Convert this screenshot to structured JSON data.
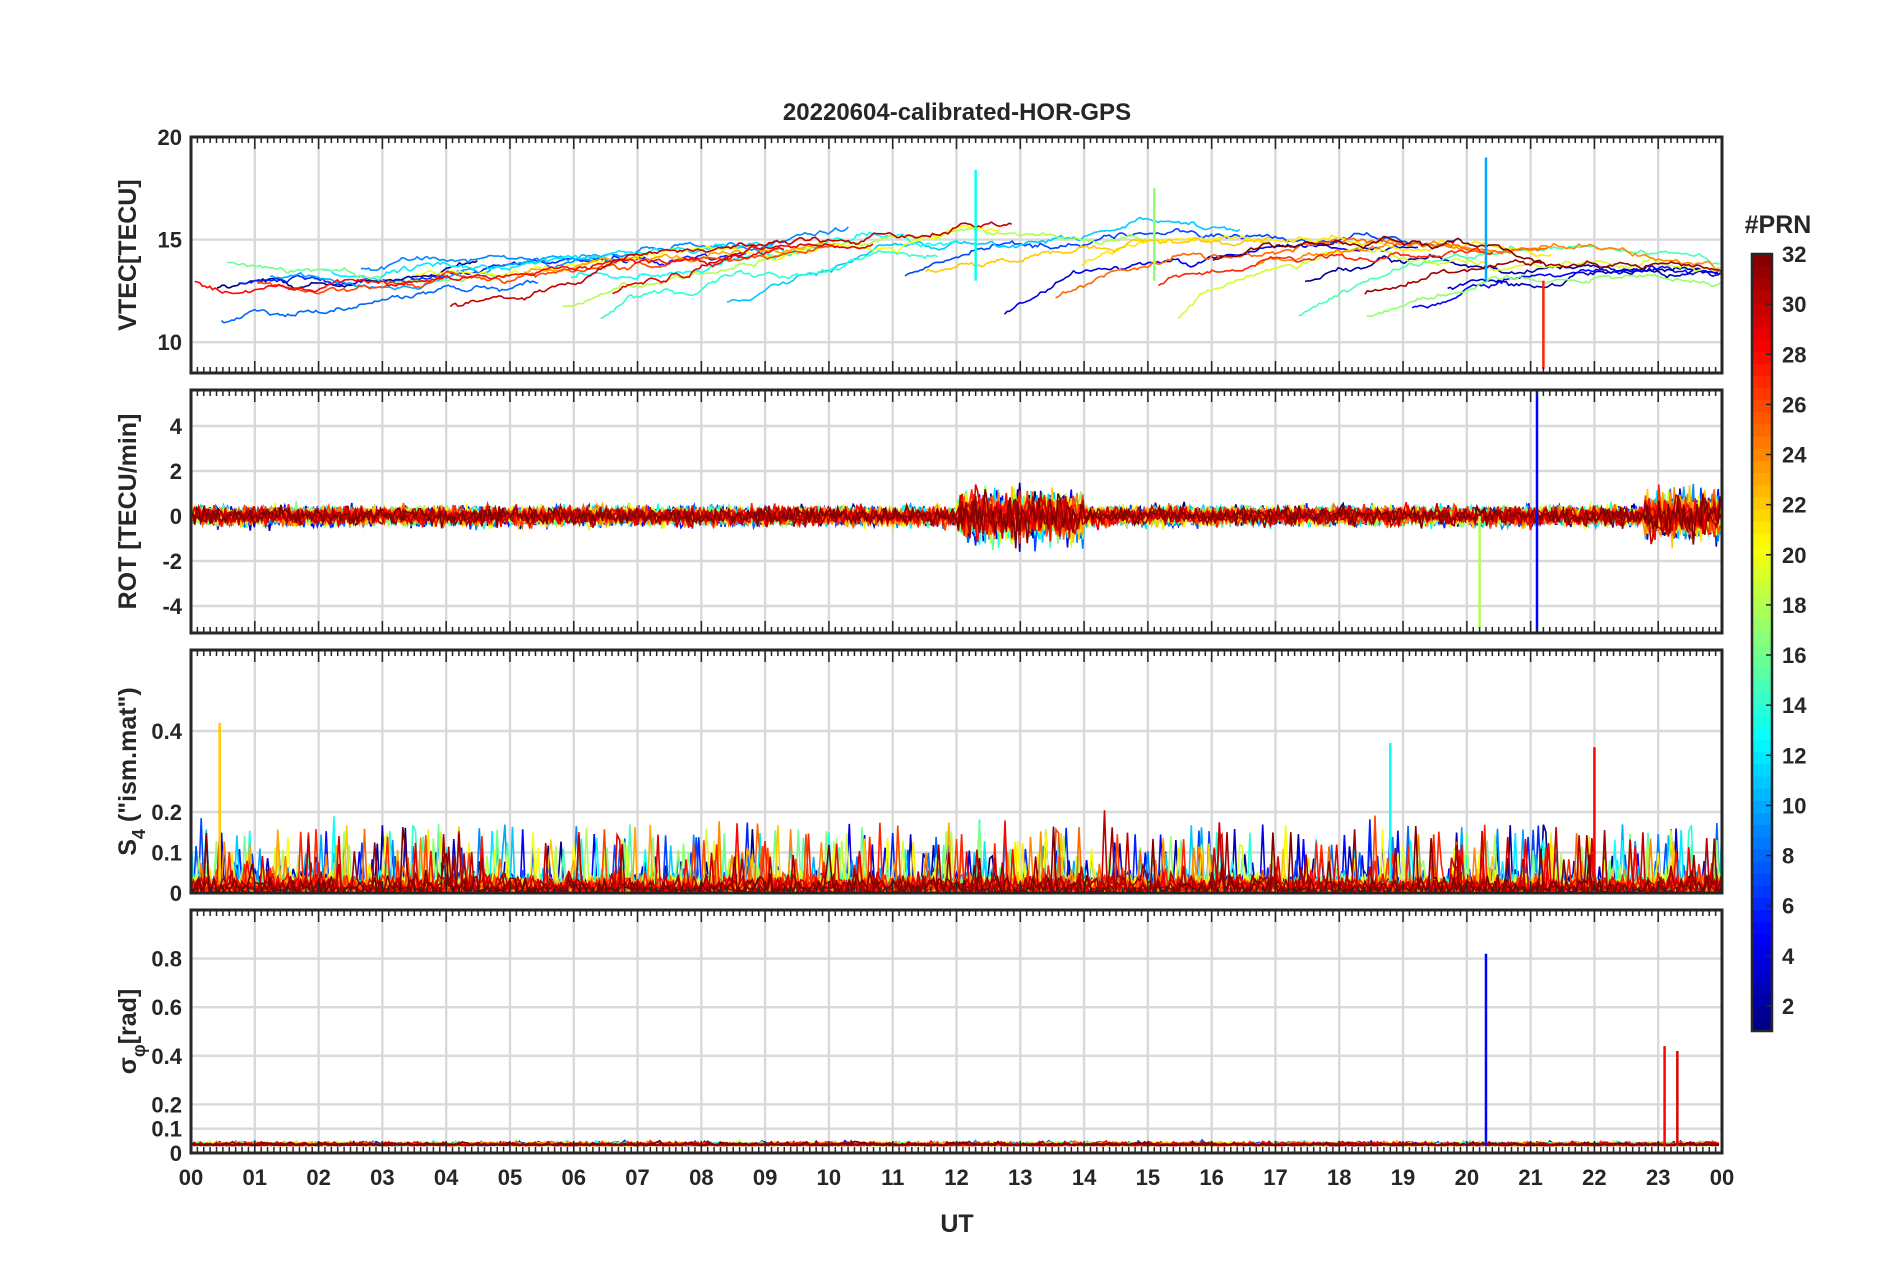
{
  "figure": {
    "title": "20220604-calibrated-HOR-GPS",
    "xlabel": "UT"
  },
  "colorbar": {
    "title": "#PRN",
    "ticks": [
      "2",
      "4",
      "6",
      "8",
      "10",
      "12",
      "14",
      "16",
      "18",
      "20",
      "22",
      "24",
      "26",
      "28",
      "30",
      "32"
    ],
    "range": [
      1,
      32
    ],
    "colormap": "jet"
  },
  "chart_data": [
    {
      "type": "line",
      "panel": "vtec",
      "ylabel": "VTEC[TECU]",
      "xlim": [
        0,
        24
      ],
      "ylim": [
        8.5,
        20
      ],
      "yticks": [
        10,
        15,
        20
      ],
      "x_tick_labels": [
        "00",
        "01",
        "02",
        "03",
        "04",
        "05",
        "06",
        "07",
        "08",
        "09",
        "10",
        "11",
        "12",
        "13",
        "14",
        "15",
        "16",
        "17",
        "18",
        "19",
        "20",
        "21",
        "22",
        "23",
        "00"
      ],
      "grid": true,
      "series_prns": [
        1,
        2,
        3,
        4,
        5,
        6,
        7,
        8,
        9,
        10,
        11,
        12,
        13,
        14,
        15,
        16,
        17,
        18,
        19,
        20,
        21,
        22,
        23,
        24,
        25,
        26,
        27,
        28,
        29,
        30,
        31,
        32
      ],
      "notable_points": [
        {
          "x": 12.3,
          "y": 18.4,
          "prn": 13
        },
        {
          "x": 15.1,
          "y": 17.5,
          "prn": 17
        },
        {
          "x": 20.3,
          "y": 19.0,
          "prn": 10
        },
        {
          "x": 21.2,
          "y": 8.7,
          "prn": 27
        }
      ]
    },
    {
      "type": "line",
      "panel": "rot",
      "ylabel": "ROT [TECU/min]",
      "xlim": [
        0,
        24
      ],
      "ylim": [
        -5.2,
        5.6
      ],
      "yticks": [
        -4,
        -2,
        0,
        2,
        4
      ],
      "grid": true,
      "notable_points": [
        {
          "x": 21.1,
          "y": 5.6,
          "prn": 5
        },
        {
          "x": 21.1,
          "y": -5.2,
          "prn": 5
        },
        {
          "x": 20.2,
          "y": -5.0,
          "prn": 18
        }
      ]
    },
    {
      "type": "line",
      "panel": "s4",
      "ylabel": "S4 (\"ism.mat\")",
      "ylabel_main": "S",
      "ylabel_sub": "4",
      "ylabel_rest": " (\"ism.mat\")",
      "xlim": [
        0,
        24
      ],
      "ylim": [
        0,
        0.6
      ],
      "yticks": [
        0,
        0.1,
        0.2,
        0.4
      ],
      "ytick_labels": [
        "0",
        "0.1",
        "0.2",
        "0.4"
      ],
      "grid": true,
      "notable_points": [
        {
          "x": 0.45,
          "y": 0.42,
          "prn": 22
        },
        {
          "x": 18.8,
          "y": 0.37,
          "prn": 13
        },
        {
          "x": 22.0,
          "y": 0.36,
          "prn": 28
        }
      ]
    },
    {
      "type": "line",
      "panel": "sigma_phi",
      "ylabel": "σφ[rad]",
      "ylabel_main": "σ",
      "ylabel_sub": "φ",
      "ylabel_rest": "[rad]",
      "xlim": [
        0,
        24
      ],
      "ylim": [
        0,
        1
      ],
      "yticks": [
        0,
        0.1,
        0.2,
        0.4,
        0.6,
        0.8
      ],
      "ytick_labels": [
        "0",
        "0.1",
        "0.2",
        "0.4",
        "0.6",
        "0.8"
      ],
      "grid": true,
      "notable_points": [
        {
          "x": 20.3,
          "y": 0.82,
          "prn": 5
        },
        {
          "x": 23.1,
          "y": 0.44,
          "prn": 28
        },
        {
          "x": 23.3,
          "y": 0.42,
          "prn": 29
        }
      ]
    }
  ]
}
